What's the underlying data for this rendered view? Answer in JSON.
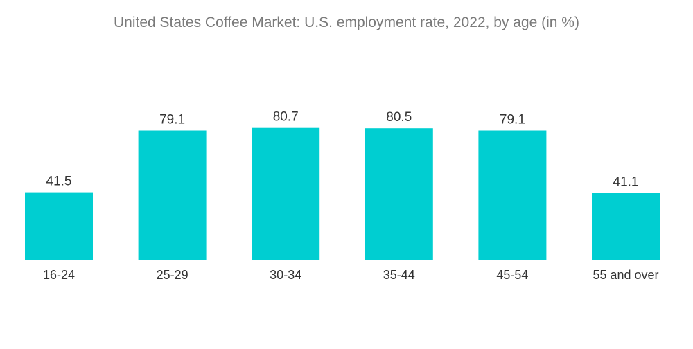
{
  "chart_data": {
    "type": "bar",
    "title": "United States Coffee Market: U.S. employment rate, 2022, by age (in %)",
    "xlabel": "",
    "ylabel": "",
    "categories": [
      "16-24",
      "25-29",
      "30-34",
      "35-44",
      "45-54",
      "55 and over"
    ],
    "values": [
      41.5,
      79.1,
      80.7,
      80.5,
      79.1,
      41.1
    ],
    "value_labels": [
      "41.5",
      "79.1",
      "80.7",
      "80.5",
      "79.1",
      "41.1"
    ],
    "ylim": [
      0,
      100
    ],
    "grid": false,
    "legend": "none",
    "bar_color": "#00ced1"
  }
}
